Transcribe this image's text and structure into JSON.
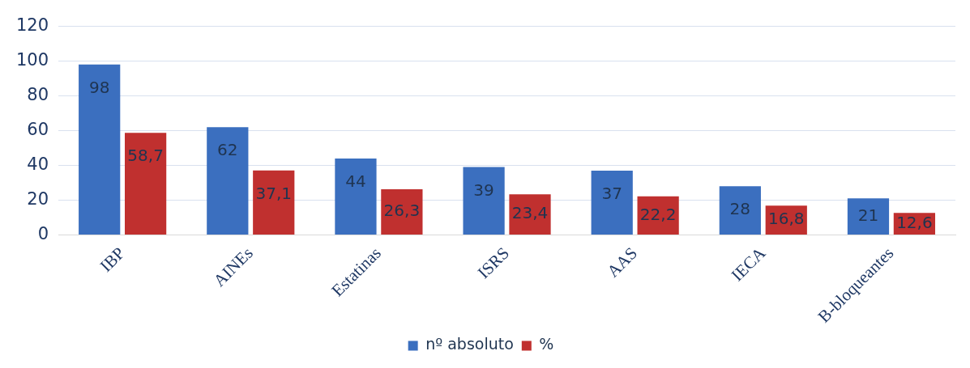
{
  "chart_data": {
    "type": "bar",
    "categories": [
      "IBP",
      "AINEs",
      "Estatinas",
      "ISRS",
      "AAS",
      "IECA",
      "B-bloqueantes"
    ],
    "series": [
      {
        "name": "nº absoluto",
        "color": "#3b6fbf",
        "values": [
          98,
          62,
          44,
          39,
          37,
          28,
          21
        ],
        "value_labels": [
          "98",
          "62",
          "44",
          "39",
          "37",
          "28",
          "21"
        ]
      },
      {
        "name": "%",
        "color": "#c0302f",
        "values": [
          58.7,
          37.1,
          26.3,
          23.4,
          22.2,
          16.8,
          12.6
        ],
        "value_labels": [
          "58,7",
          "37,1",
          "26,3",
          "23,4",
          "22,2",
          "16,8",
          "12,6"
        ]
      }
    ],
    "ylim": [
      0,
      120
    ],
    "yticks": [
      0,
      20,
      40,
      60,
      80,
      100,
      120
    ],
    "grid": "y",
    "legend": "bottom"
  }
}
